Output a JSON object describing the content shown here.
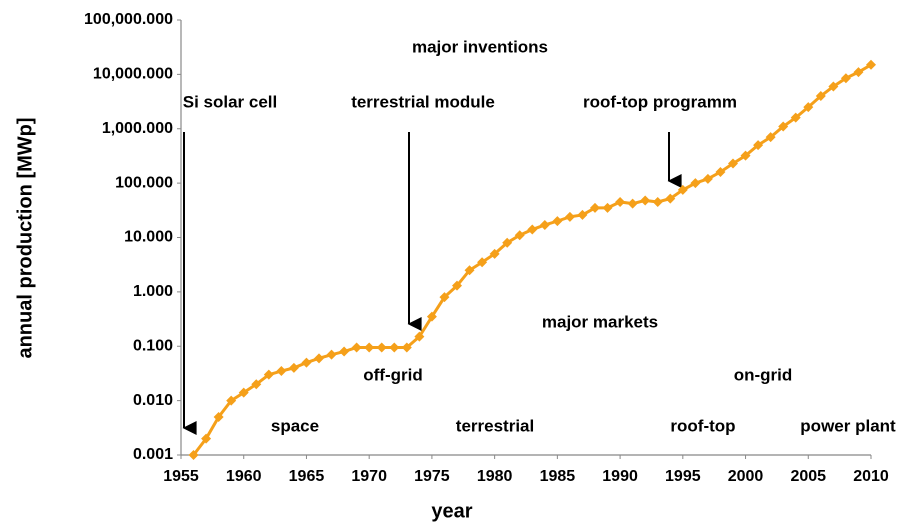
{
  "chart_data": {
    "type": "line",
    "xlabel": "year",
    "ylabel": "annual production [MWp]",
    "x": [
      1956,
      1957,
      1958,
      1959,
      1960,
      1961,
      1962,
      1963,
      1964,
      1965,
      1966,
      1967,
      1968,
      1969,
      1970,
      1971,
      1972,
      1973,
      1974,
      1975,
      1976,
      1977,
      1978,
      1979,
      1980,
      1981,
      1982,
      1983,
      1984,
      1985,
      1986,
      1987,
      1988,
      1989,
      1990,
      1991,
      1992,
      1993,
      1994,
      1995,
      1996,
      1997,
      1998,
      1999,
      2000,
      2001,
      2002,
      2003,
      2004,
      2005,
      2006,
      2007,
      2008,
      2009,
      2010
    ],
    "series": [
      {
        "color": "#f5a01a",
        "values": [
          0.001,
          0.002,
          0.005,
          0.01,
          0.014,
          0.02,
          0.03,
          0.035,
          0.04,
          0.05,
          0.06,
          0.07,
          0.08,
          0.095,
          0.095,
          0.095,
          0.095,
          0.095,
          0.15,
          0.35,
          0.8,
          1.3,
          2.5,
          3.5,
          5,
          8,
          11,
          14,
          17,
          20,
          24,
          26,
          35,
          35,
          45,
          42,
          48,
          45,
          52,
          75,
          100,
          120,
          160,
          230,
          320,
          500,
          700,
          1100,
          1600,
          2500,
          4000,
          6000,
          8500,
          11000,
          15000
        ]
      }
    ],
    "xlim": [
      1955,
      2010
    ],
    "xticks": [
      1955,
      1960,
      1965,
      1970,
      1975,
      1980,
      1985,
      1990,
      1995,
      2000,
      2005,
      2010
    ],
    "ylim": [
      0.001,
      100000
    ],
    "yscale": "log",
    "yticks": [
      0.001,
      {
        "value": 0.01,
        "label": "0.010"
      },
      {
        "value": 0.1,
        "label": "0.100"
      },
      {
        "value": 1,
        "label": "1.000"
      },
      {
        "value": 10,
        "label": "10.000"
      },
      {
        "value": 100,
        "label": "100.000"
      },
      {
        "value": 1000,
        "label": "1,000.000"
      },
      {
        "value": 10000,
        "label": "10,000.000"
      },
      {
        "value": 100000,
        "label": "100,000.000"
      }
    ],
    "grid": false,
    "annotations": [
      "major inventions",
      "Si solar cell",
      "terrestrial module",
      "roof-top programm",
      "major markets",
      "off-grid",
      "on-grid",
      "space",
      "terrestrial",
      "roof-top",
      "power plant"
    ]
  }
}
